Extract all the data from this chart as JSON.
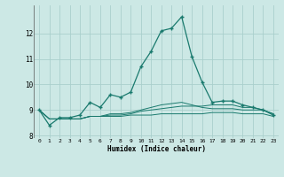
{
  "xlabel": "Humidex (Indice chaleur)",
  "background_color": "#cce8e5",
  "grid_color": "#aacfcc",
  "line_color": "#1a7a6e",
  "x": [
    0,
    1,
    2,
    3,
    4,
    5,
    6,
    7,
    8,
    9,
    10,
    11,
    12,
    13,
    14,
    15,
    16,
    17,
    18,
    19,
    20,
    21,
    22,
    23
  ],
  "series": [
    [
      9.0,
      8.4,
      8.7,
      8.7,
      8.8,
      9.3,
      9.1,
      9.6,
      9.5,
      9.7,
      10.7,
      11.3,
      12.1,
      12.2,
      12.65,
      11.1,
      10.1,
      9.3,
      9.35,
      9.35,
      9.2,
      9.1,
      9.0,
      8.8
    ],
    [
      9.0,
      8.65,
      8.65,
      8.65,
      8.65,
      8.75,
      8.75,
      8.75,
      8.75,
      8.8,
      8.8,
      8.8,
      8.85,
      8.85,
      8.85,
      8.85,
      8.85,
      8.9,
      8.9,
      8.9,
      8.85,
      8.85,
      8.85,
      8.75
    ],
    [
      9.0,
      8.65,
      8.65,
      8.65,
      8.65,
      8.75,
      8.75,
      8.8,
      8.8,
      8.85,
      8.95,
      9.0,
      9.05,
      9.1,
      9.15,
      9.15,
      9.15,
      9.2,
      9.2,
      9.2,
      9.1,
      9.1,
      9.0,
      8.85
    ],
    [
      9.0,
      8.65,
      8.65,
      8.65,
      8.65,
      8.75,
      8.75,
      8.85,
      8.85,
      8.9,
      9.0,
      9.1,
      9.2,
      9.25,
      9.3,
      9.2,
      9.1,
      9.05,
      9.05,
      9.05,
      9.0,
      9.0,
      9.0,
      8.85
    ]
  ],
  "ylim": [
    7.9,
    13.1
  ],
  "yticks": [
    8,
    9,
    10,
    11,
    12
  ],
  "xtick_labels": [
    "0",
    "1",
    "2",
    "3",
    "4",
    "5",
    "6",
    "7",
    "8",
    "9",
    "10",
    "11",
    "12",
    "13",
    "14",
    "15",
    "16",
    "17",
    "18",
    "19",
    "20",
    "21",
    "22",
    "23"
  ],
  "marker": "+",
  "markersize": 3.5,
  "linewidth": 0.9
}
